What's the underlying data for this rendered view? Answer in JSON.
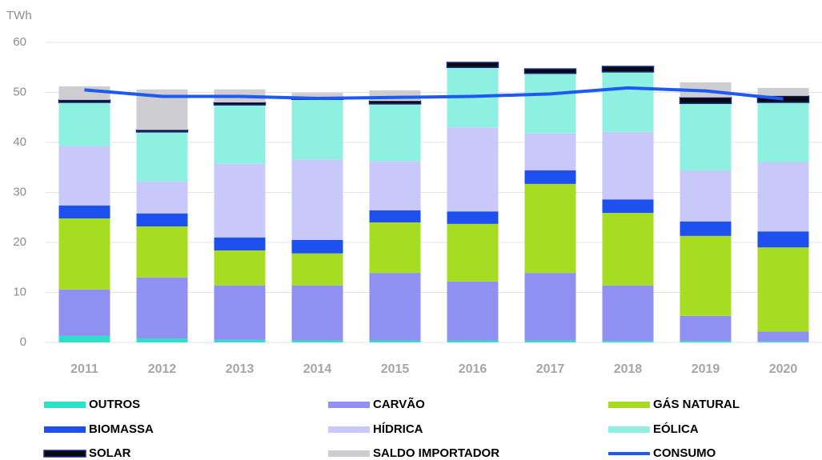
{
  "chart_data": {
    "type": "bar",
    "stacked": true,
    "y_axis_label": "TWh",
    "categories": [
      "2011",
      "2012",
      "2013",
      "2014",
      "2015",
      "2016",
      "2017",
      "2018",
      "2019",
      "2020"
    ],
    "ylim": [
      0,
      60
    ],
    "yticks": [
      0,
      10,
      20,
      30,
      40,
      50,
      60
    ],
    "grid": true,
    "legend": "bottom",
    "series": [
      {
        "name": "OUTROS",
        "color": "#2ee0c8",
        "values": [
          1.3,
          0.8,
          0.5,
          0.4,
          0.4,
          0.4,
          0.4,
          0.3,
          0.3,
          0.2
        ]
      },
      {
        "name": "CARVÃO",
        "color": "#9090f2",
        "values": [
          9.3,
          12.2,
          10.9,
          11.0,
          13.5,
          11.8,
          13.5,
          11.1,
          5.0,
          2.0
        ]
      },
      {
        "name": "GÁS NATURAL",
        "color": "#a6dc22",
        "values": [
          14.2,
          10.2,
          7.0,
          6.4,
          10.1,
          11.5,
          17.8,
          14.5,
          16.0,
          16.8
        ]
      },
      {
        "name": "BIOMASSA",
        "color": "#1e50f0",
        "values": [
          2.6,
          2.6,
          2.6,
          2.7,
          2.4,
          2.5,
          2.7,
          2.7,
          2.9,
          3.2
        ]
      },
      {
        "name": "HÍDRICA",
        "color": "#c8c8fa",
        "values": [
          11.8,
          6.4,
          14.7,
          16.1,
          9.8,
          16.8,
          7.4,
          13.5,
          10.2,
          13.8
        ]
      },
      {
        "name": "EÓLICA",
        "color": "#8ef0e0",
        "values": [
          8.8,
          9.9,
          11.8,
          12.0,
          11.5,
          12.0,
          12.0,
          12.0,
          13.4,
          12.0
        ]
      },
      {
        "name": "SOLAR",
        "color": "#0a0a14",
        "edge_color": "#1a2a80",
        "values": [
          0.5,
          0.4,
          0.5,
          0.4,
          0.6,
          1.0,
          0.9,
          1.1,
          1.2,
          1.3
        ]
      },
      {
        "name": "SALDO IMPORTADOR",
        "color": "#cdcdd2",
        "values": [
          2.7,
          8.1,
          2.6,
          0.9,
          2.1,
          null,
          null,
          null,
          3.0,
          1.6
        ]
      },
      {
        "name": "CONSUMO",
        "type": "line",
        "color": "#1e5af0",
        "values": [
          50.5,
          49.2,
          49.2,
          48.8,
          49.0,
          49.2,
          49.7,
          50.9,
          50.3,
          48.7
        ]
      }
    ]
  }
}
